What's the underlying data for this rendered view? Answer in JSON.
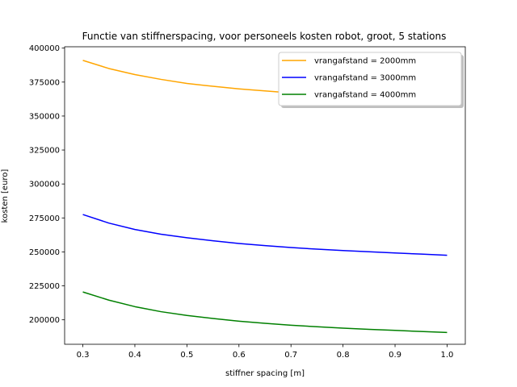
{
  "chart_data": {
    "type": "line",
    "title": "Functie van stiffnerspacing, voor personeels kosten robot, groot, 5 stations",
    "xlabel": "stiffner spacing [m]",
    "ylabel": "kosten [euro]",
    "xlim": [
      0.265,
      1.035
    ],
    "ylim": [
      182000,
      401000
    ],
    "xticks": [
      0.3,
      0.4,
      0.5,
      0.6,
      0.7,
      0.8,
      0.9,
      1.0
    ],
    "xtick_labels": [
      "0.3",
      "0.4",
      "0.5",
      "0.6",
      "0.7",
      "0.8",
      "0.9",
      "1.0"
    ],
    "yticks": [
      200000,
      225000,
      250000,
      275000,
      300000,
      325000,
      350000,
      375000,
      400000
    ],
    "ytick_labels": [
      "200000",
      "225000",
      "250000",
      "275000",
      "300000",
      "325000",
      "350000",
      "375000",
      "400000"
    ],
    "grid": false,
    "legend_position": "top-right",
    "x": [
      0.3,
      0.35,
      0.4,
      0.45,
      0.5,
      0.55,
      0.6,
      0.65,
      0.7,
      0.75,
      0.8,
      0.85,
      0.9,
      0.95,
      1.0
    ],
    "series": [
      {
        "name": "vrangafstand = 2000mm",
        "color": "#ffa500",
        "values": [
          391000,
          385000,
          380500,
          377000,
          374000,
          371900,
          370000,
          368500,
          367000,
          366000,
          365000,
          364200,
          363500,
          362900,
          362300
        ]
      },
      {
        "name": "vrangafstand = 3000mm",
        "color": "#0000ff",
        "values": [
          277500,
          271200,
          266500,
          263000,
          260400,
          258200,
          256200,
          254600,
          253200,
          252000,
          251000,
          250100,
          249200,
          248400,
          247500
        ]
      },
      {
        "name": "vrangafstand = 4000mm",
        "color": "#008000",
        "values": [
          220500,
          214500,
          209700,
          206000,
          203200,
          201000,
          199000,
          197400,
          196000,
          194900,
          193900,
          193000,
          192200,
          191400,
          190700
        ]
      }
    ]
  }
}
